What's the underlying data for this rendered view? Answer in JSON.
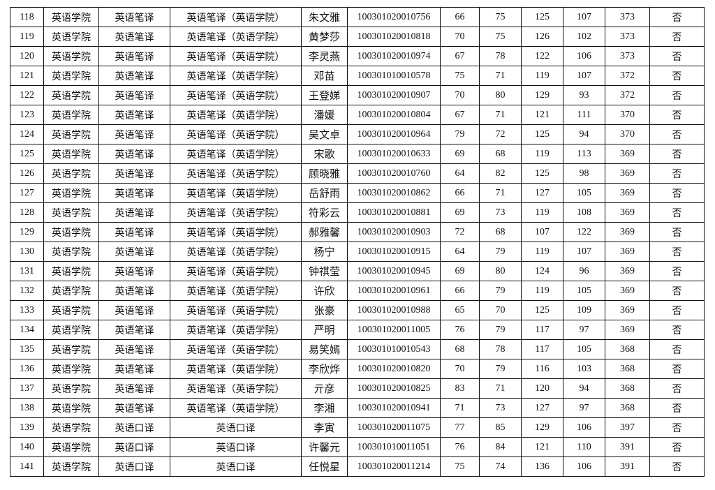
{
  "table": {
    "rows": [
      [
        "118",
        "英语学院",
        "英语笔译",
        "英语笔译（英语学院）",
        "朱文雅",
        "100301020010756",
        "66",
        "75",
        "125",
        "107",
        "373",
        "否"
      ],
      [
        "119",
        "英语学院",
        "英语笔译",
        "英语笔译（英语学院）",
        "黄梦莎",
        "100301020010818",
        "70",
        "75",
        "126",
        "102",
        "373",
        "否"
      ],
      [
        "120",
        "英语学院",
        "英语笔译",
        "英语笔译（英语学院）",
        "李灵燕",
        "100301020010974",
        "67",
        "78",
        "122",
        "106",
        "373",
        "否"
      ],
      [
        "121",
        "英语学院",
        "英语笔译",
        "英语笔译（英语学院）",
        "邓苗",
        "100301010010578",
        "75",
        "71",
        "119",
        "107",
        "372",
        "否"
      ],
      [
        "122",
        "英语学院",
        "英语笔译",
        "英语笔译（英语学院）",
        "王登娣",
        "100301020010907",
        "70",
        "80",
        "129",
        "93",
        "372",
        "否"
      ],
      [
        "123",
        "英语学院",
        "英语笔译",
        "英语笔译（英语学院）",
        "潘媛",
        "100301020010804",
        "67",
        "71",
        "121",
        "111",
        "370",
        "否"
      ],
      [
        "124",
        "英语学院",
        "英语笔译",
        "英语笔译（英语学院）",
        "吴文卓",
        "100301020010964",
        "79",
        "72",
        "125",
        "94",
        "370",
        "否"
      ],
      [
        "125",
        "英语学院",
        "英语笔译",
        "英语笔译（英语学院）",
        "宋歌",
        "100301020010633",
        "69",
        "68",
        "119",
        "113",
        "369",
        "否"
      ],
      [
        "126",
        "英语学院",
        "英语笔译",
        "英语笔译（英语学院）",
        "顾晓雅",
        "100301020010760",
        "64",
        "82",
        "125",
        "98",
        "369",
        "否"
      ],
      [
        "127",
        "英语学院",
        "英语笔译",
        "英语笔译（英语学院）",
        "岳舒雨",
        "100301020010862",
        "66",
        "71",
        "127",
        "105",
        "369",
        "否"
      ],
      [
        "128",
        "英语学院",
        "英语笔译",
        "英语笔译（英语学院）",
        "符彩云",
        "100301020010881",
        "69",
        "73",
        "119",
        "108",
        "369",
        "否"
      ],
      [
        "129",
        "英语学院",
        "英语笔译",
        "英语笔译（英语学院）",
        "郝雅馨",
        "100301020010903",
        "72",
        "68",
        "107",
        "122",
        "369",
        "否"
      ],
      [
        "130",
        "英语学院",
        "英语笔译",
        "英语笔译（英语学院）",
        "杨宁",
        "100301020010915",
        "64",
        "79",
        "119",
        "107",
        "369",
        "否"
      ],
      [
        "131",
        "英语学院",
        "英语笔译",
        "英语笔译（英语学院）",
        "钟祺莹",
        "100301020010945",
        "69",
        "80",
        "124",
        "96",
        "369",
        "否"
      ],
      [
        "132",
        "英语学院",
        "英语笔译",
        "英语笔译（英语学院）",
        "许欣",
        "100301020010961",
        "66",
        "79",
        "119",
        "105",
        "369",
        "否"
      ],
      [
        "133",
        "英语学院",
        "英语笔译",
        "英语笔译（英语学院）",
        "张豪",
        "100301020010988",
        "65",
        "70",
        "125",
        "109",
        "369",
        "否"
      ],
      [
        "134",
        "英语学院",
        "英语笔译",
        "英语笔译（英语学院）",
        "严明",
        "100301020011005",
        "76",
        "79",
        "117",
        "97",
        "369",
        "否"
      ],
      [
        "135",
        "英语学院",
        "英语笔译",
        "英语笔译（英语学院）",
        "易笑嫣",
        "100301010010543",
        "68",
        "78",
        "117",
        "105",
        "368",
        "否"
      ],
      [
        "136",
        "英语学院",
        "英语笔译",
        "英语笔译（英语学院）",
        "李欣烨",
        "100301020010820",
        "70",
        "79",
        "116",
        "103",
        "368",
        "否"
      ],
      [
        "137",
        "英语学院",
        "英语笔译",
        "英语笔译（英语学院）",
        "亓彦",
        "100301020010825",
        "83",
        "71",
        "120",
        "94",
        "368",
        "否"
      ],
      [
        "138",
        "英语学院",
        "英语笔译",
        "英语笔译（英语学院）",
        "李湘",
        "100301020010941",
        "71",
        "73",
        "127",
        "97",
        "368",
        "否"
      ],
      [
        "139",
        "英语学院",
        "英语口译",
        "英语口译",
        "李寅",
        "100301020011075",
        "77",
        "85",
        "129",
        "106",
        "397",
        "否"
      ],
      [
        "140",
        "英语学院",
        "英语口译",
        "英语口译",
        "许馨元",
        "100301010011051",
        "76",
        "84",
        "121",
        "110",
        "391",
        "否"
      ],
      [
        "141",
        "英语学院",
        "英语口译",
        "英语口译",
        "任悦星",
        "100301020011214",
        "75",
        "74",
        "136",
        "106",
        "391",
        "否"
      ]
    ]
  }
}
